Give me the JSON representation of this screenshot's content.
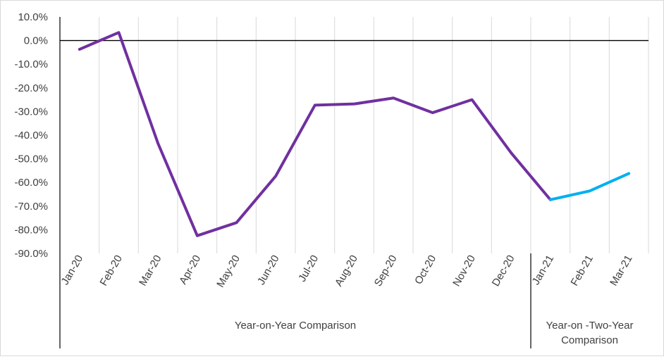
{
  "chart_data": {
    "type": "line",
    "title": "",
    "xlabel": "",
    "ylabel": "",
    "ylim": [
      -90,
      10
    ],
    "y_ticks": [
      "10.0%",
      "0.0%",
      "-10.0%",
      "-20.0%",
      "-30.0%",
      "-40.0%",
      "-50.0%",
      "-60.0%",
      "-70.0%",
      "-80.0%",
      "-90.0%"
    ],
    "y_tick_values": [
      10,
      0,
      -10,
      -20,
      -30,
      -40,
      -50,
      -60,
      -70,
      -80,
      -90
    ],
    "categories": [
      "Jan-20",
      "Feb-20",
      "Mar-20",
      "Apr-20",
      "May-20",
      "Jun-20",
      "Jul-20",
      "Aug-20",
      "Sep-20",
      "Oct-20",
      "Nov-20",
      "Dec-20",
      "Jan-21",
      "Feb-21",
      "Mar-21"
    ],
    "grid": "vertical",
    "series": [
      {
        "color": "#7030a0",
        "values": [
          -3.7,
          3.4,
          -43.5,
          -82.5,
          -77.0,
          -57.3,
          -27.3,
          -26.8,
          -24.3,
          -30.5,
          -25.0,
          -47.5,
          -67.3,
          null,
          null
        ]
      },
      {
        "color": "#00b0f0",
        "values": [
          null,
          null,
          null,
          null,
          null,
          null,
          null,
          null,
          null,
          null,
          null,
          null,
          -67.3,
          -63.6,
          -56.2
        ]
      }
    ],
    "groups": [
      {
        "label_lines": [
          "Year-on-Year Comparison"
        ],
        "categories": [
          "Jan-20",
          "Dec-20"
        ]
      },
      {
        "label_lines": [
          "Year-on -Two-Year",
          "Comparison"
        ],
        "categories": [
          "Jan-21",
          "Mar-21"
        ]
      }
    ]
  }
}
